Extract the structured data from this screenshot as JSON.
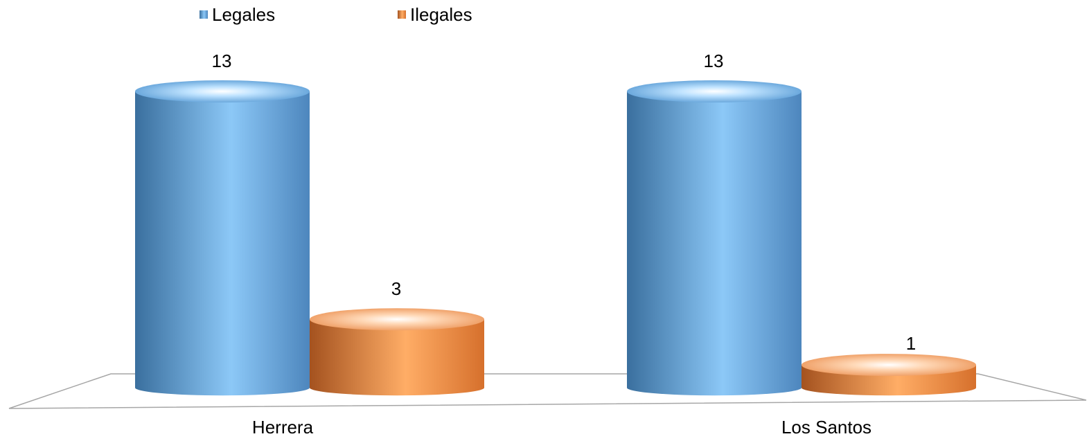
{
  "chart_data": {
    "type": "bar",
    "style": "3d-cylinder",
    "categories": [
      "Herrera",
      "Los Santos"
    ],
    "series": [
      {
        "name": "Legales",
        "values": [
          13,
          13
        ],
        "color": "#5b9bd5"
      },
      {
        "name": "Ilegales",
        "values": [
          3,
          1
        ],
        "color": "#ed7d31"
      }
    ],
    "data_labels": true,
    "legend": "top-left",
    "grid": false,
    "ylim": [
      0,
      13
    ]
  }
}
